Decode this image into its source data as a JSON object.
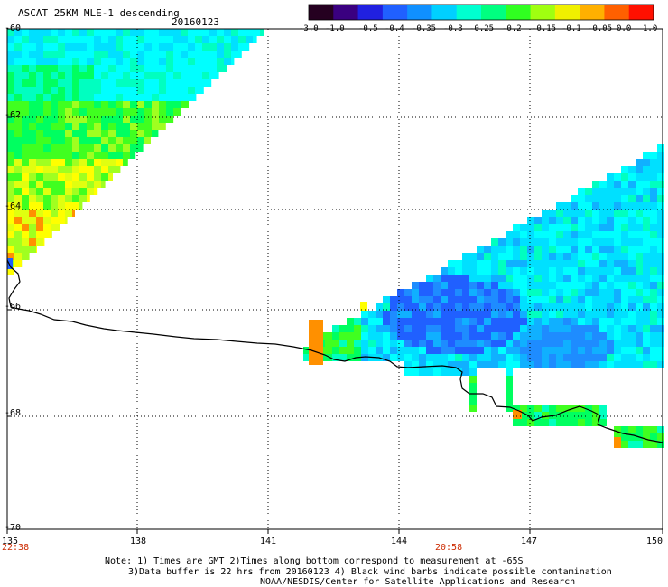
{
  "header": {
    "title": "ASCAT 25KM MLE-1 descending",
    "date": "20160123"
  },
  "colorbar": {
    "labels": [
      "-3.0",
      "-1.0",
      "-0.5",
      "-0.4",
      "-0.35",
      "-0.3",
      "-0.25",
      "-0.2",
      "-0.15",
      "-0.1",
      "-0.05",
      "0.0",
      "1.0"
    ],
    "colors": [
      "#250020",
      "#3a0080",
      "#2020e0",
      "#2060ff",
      "#1090ff",
      "#00d0ff",
      "#00ffd0",
      "#00ff80",
      "#30ff20",
      "#a0ff10",
      "#f0f000",
      "#ffb000",
      "#ff6000",
      "#ff1000"
    ]
  },
  "axes": {
    "lat_labels": [
      "-60",
      "-62",
      "-64",
      "-66",
      "-68",
      "-70"
    ],
    "lon_labels": [
      "135",
      "138",
      "141",
      "144",
      "147",
      "150"
    ],
    "time_labels": [
      "22:38",
      "20:58"
    ]
  },
  "notes": {
    "line1": "Note: 1) Times are GMT 2)Times along bottom correspond to measurement at -65S",
    "line2": "3)Data buffer is 22 hrs from 20160123 4) Black wind barbs indicate possible contamination",
    "line3": "NOAA/NESDIS/Center for Satellite Applications and Research"
  }
}
